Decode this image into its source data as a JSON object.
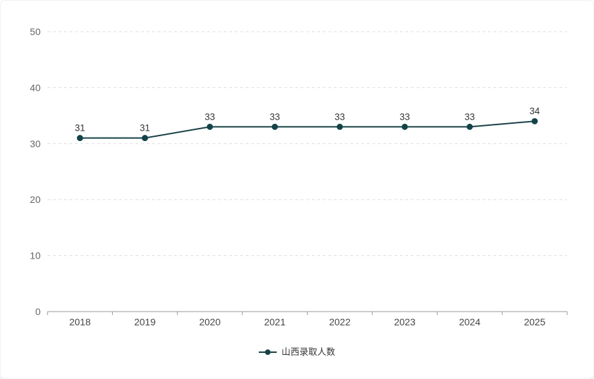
{
  "legend": {
    "label": "山西录取人数"
  },
  "colors": {
    "series": "#114449",
    "grid_line": "#dddddd",
    "axis_line": "#999999",
    "y_tick_label": "#666666",
    "x_tick_label": "#444444",
    "data_label": "#333333"
  },
  "chart_data": {
    "type": "line",
    "title": "",
    "categories": [
      "2018",
      "2019",
      "2020",
      "2021",
      "2022",
      "2023",
      "2024",
      "2025"
    ],
    "series": [
      {
        "name": "山西录取人数",
        "values": [
          31,
          31,
          33,
          33,
          33,
          33,
          33,
          34
        ]
      }
    ],
    "xlabel": "",
    "ylabel": "",
    "ylim": [
      0,
      50
    ],
    "y_ticks": [
      0,
      10,
      20,
      30,
      40,
      50
    ],
    "grid": "horizontal dashed (no line at 0)",
    "data_labels": true,
    "legend_position": "bottom-center",
    "marker": "filled circle on solid line"
  }
}
